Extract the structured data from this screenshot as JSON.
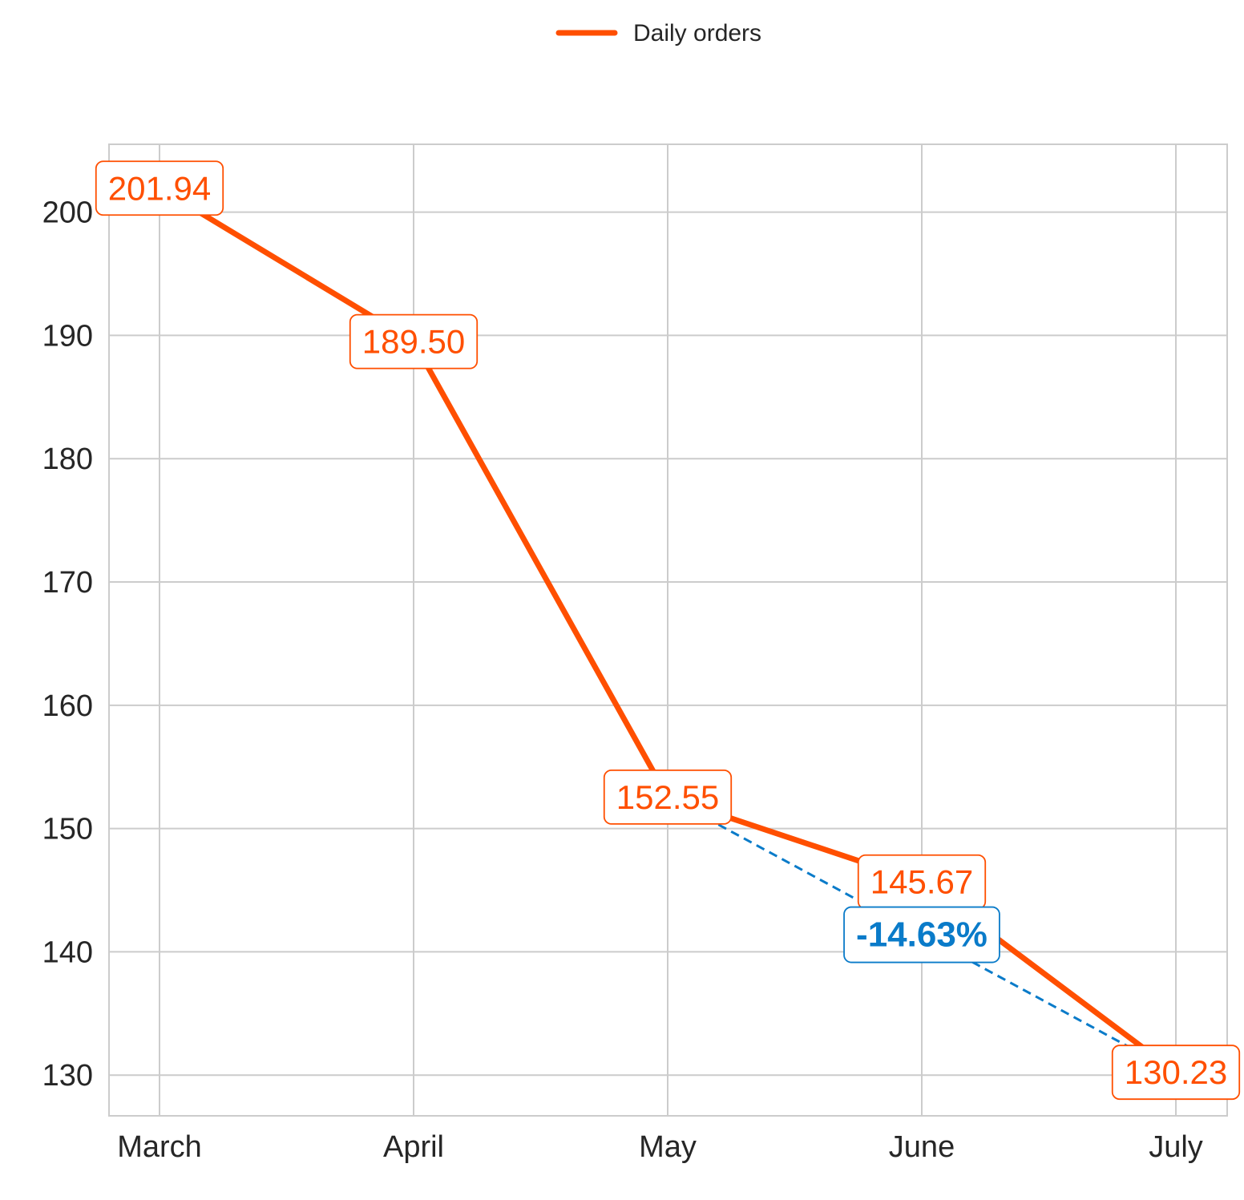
{
  "chart_data": {
    "type": "line",
    "categories": [
      "March",
      "April",
      "May",
      "June",
      "July"
    ],
    "series": [
      {
        "name": "Daily orders",
        "values": [
          201.94,
          189.5,
          152.55,
          145.67,
          130.23
        ],
        "color": "#FF4F00"
      }
    ],
    "data_labels": [
      "201.94",
      "189.50",
      "152.55",
      "145.67",
      "130.23"
    ],
    "annotation": {
      "text": "-14.63%",
      "from_category": "May",
      "to_category": "July",
      "style": "dashed",
      "color": "#0A7BC9"
    },
    "yticks": [
      130,
      140,
      150,
      160,
      170,
      180,
      190,
      200
    ],
    "ylim": [
      126.7,
      205.5
    ],
    "legend_position": "top-center",
    "grid": true,
    "title": "",
    "xlabel": "",
    "ylabel": ""
  }
}
